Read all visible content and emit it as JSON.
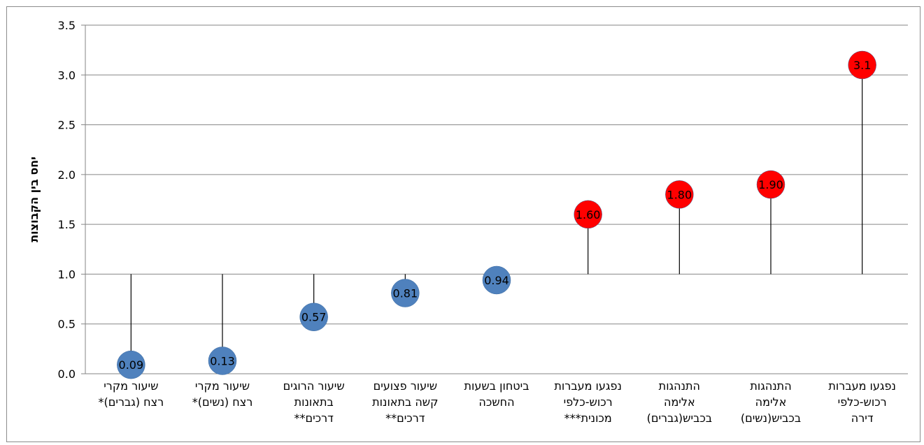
{
  "chart_data": {
    "type": "scatter",
    "ylabel": "יחס בין הקבוצות",
    "ylim": [
      0,
      3.5
    ],
    "yticks": [
      "0.0",
      "0.5",
      "1.0",
      "1.5",
      "2.0",
      "2.5",
      "3.0",
      "3.5"
    ],
    "baseline": 1.0,
    "grid": true,
    "categories": [
      [
        "שיעור מקרי",
        "רצח (גברים)*"
      ],
      [
        "שיעור מקרי",
        "רצח (נשים)*"
      ],
      [
        "שיעור הרוגים",
        "בתאונות",
        "דרכים**"
      ],
      [
        "שיעור פצועים",
        "קשה בתאונות",
        "דרכים**"
      ],
      [
        "ביטחון בשעות",
        "החשכה"
      ],
      [
        "נפגעו מעברות",
        "רכוש-כלפי",
        "מכונית***"
      ],
      [
        "התנהגות",
        "אלימה",
        "בכביש(גברים)"
      ],
      [
        "התנהגות",
        "אלימה",
        "בכביש(נשים)"
      ],
      [
        "נפגעו מעברות",
        "רכוש-כלפי",
        "דירה"
      ]
    ],
    "values": [
      0.09,
      0.13,
      0.57,
      0.81,
      0.94,
      1.6,
      1.8,
      1.9,
      3.1
    ],
    "labels": [
      "0.09",
      "0.13",
      "0.57",
      "0.81",
      "0.94",
      "1.60",
      "1.80",
      "1.90",
      "3.1"
    ],
    "point_colors": [
      "#4f81bd",
      "#4f81bd",
      "#4f81bd",
      "#4f81bd",
      "#4f81bd",
      "#ff0000",
      "#ff0000",
      "#ff0000",
      "#ff0000"
    ]
  }
}
